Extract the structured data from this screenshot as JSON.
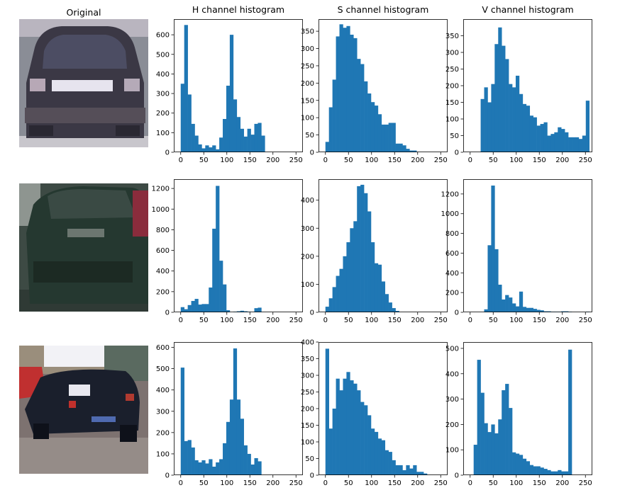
{
  "titles": {
    "original": "Original",
    "h": "H channel histogram",
    "s": "S channel histogram",
    "v": "V channel histogram"
  },
  "style": {
    "bar_color": "#1f77b4",
    "axis_color": "#000000"
  },
  "photos": [
    {
      "name": "car-photo-1",
      "description_colors": [
        "#5a5560",
        "#2c2a36",
        "#d8d8e0",
        "#b8b0c0"
      ]
    },
    {
      "name": "car-photo-2",
      "description_colors": [
        "#2c3d32",
        "#1d2a22",
        "#45524a",
        "#8a2030"
      ]
    },
    {
      "name": "car-photo-3",
      "description_colors": [
        "#1c2030",
        "#e8e8f0",
        "#c03030",
        "#7a6860"
      ]
    }
  ],
  "chart_data": [
    {
      "type": "bar",
      "row": 0,
      "channel": "H",
      "title": "H channel histogram",
      "bin_width": 7.6,
      "x": [
        0,
        7.6,
        15.2,
        22.8,
        30.4,
        38,
        45.6,
        53.2,
        60.8,
        68.4,
        76,
        83.6,
        91.2,
        98.8,
        106.4,
        114,
        121.6,
        129.2,
        136.8,
        144.4,
        152,
        159.6,
        167.2,
        174.8,
        182.4,
        190,
        197.6,
        205.2,
        212.8,
        220.4,
        228,
        235.6,
        243.2,
        250.8
      ],
      "values": [
        350,
        650,
        295,
        145,
        85,
        40,
        20,
        35,
        25,
        35,
        15,
        75,
        170,
        340,
        600,
        270,
        180,
        120,
        80,
        120,
        90,
        145,
        150,
        85,
        0,
        0,
        0,
        0,
        0,
        0,
        0,
        0,
        0,
        0
      ],
      "xlim": [
        -15,
        265
      ],
      "ylim": [
        0,
        680
      ],
      "xticks": [
        0,
        50,
        100,
        150,
        200,
        250
      ],
      "yticks": [
        0,
        100,
        200,
        300,
        400,
        500,
        600
      ]
    },
    {
      "type": "bar",
      "row": 0,
      "channel": "S",
      "title": "S channel histogram",
      "bin_width": 7.6,
      "x": [
        0,
        7.6,
        15.2,
        22.8,
        30.4,
        38,
        45.6,
        53.2,
        60.8,
        68.4,
        76,
        83.6,
        91.2,
        98.8,
        106.4,
        114,
        121.6,
        129.2,
        136.8,
        144.4,
        152,
        159.6,
        167.2,
        174.8,
        182.4,
        190,
        197.6,
        205.2,
        212.8,
        220.4,
        228,
        235.6,
        243.2,
        250.8
      ],
      "values": [
        30,
        130,
        210,
        335,
        370,
        360,
        365,
        340,
        330,
        270,
        255,
        205,
        170,
        145,
        135,
        110,
        80,
        80,
        85,
        85,
        25,
        25,
        20,
        10,
        5,
        5,
        0,
        0,
        0,
        0,
        0,
        0,
        0,
        0
      ],
      "xlim": [
        -15,
        265
      ],
      "ylim": [
        0,
        385
      ],
      "xticks": [
        0,
        50,
        100,
        150,
        200,
        250
      ],
      "yticks": [
        0,
        50,
        100,
        150,
        200,
        250,
        300,
        350
      ]
    },
    {
      "type": "bar",
      "row": 0,
      "channel": "V",
      "title": "V channel histogram",
      "bin_width": 7.6,
      "x": [
        0,
        7.6,
        15.2,
        22.8,
        30.4,
        38,
        45.6,
        53.2,
        60.8,
        68.4,
        76,
        83.6,
        91.2,
        98.8,
        106.4,
        114,
        121.6,
        129.2,
        136.8,
        144.4,
        152,
        159.6,
        167.2,
        174.8,
        182.4,
        190,
        197.6,
        205.2,
        212.8,
        220.4,
        228,
        235.6,
        243.2,
        250.8
      ],
      "values": [
        0,
        0,
        0,
        160,
        195,
        150,
        205,
        325,
        375,
        320,
        280,
        205,
        195,
        230,
        175,
        145,
        140,
        110,
        105,
        80,
        85,
        90,
        50,
        55,
        60,
        75,
        70,
        60,
        45,
        45,
        45,
        40,
        50,
        155
      ],
      "xlim": [
        -15,
        265
      ],
      "ylim": [
        0,
        400
      ],
      "xticks": [
        0,
        50,
        100,
        150,
        200,
        250
      ],
      "yticks": [
        0,
        50,
        100,
        150,
        200,
        250,
        300,
        350
      ]
    },
    {
      "type": "bar",
      "row": 1,
      "channel": "H",
      "title": "",
      "bin_width": 7.6,
      "x": [
        0,
        7.6,
        15.2,
        22.8,
        30.4,
        38,
        45.6,
        53.2,
        60.8,
        68.4,
        76,
        83.6,
        91.2,
        98.8,
        106.4,
        114,
        121.6,
        129.2,
        136.8,
        144.4,
        152,
        159.6,
        167.2,
        174.8,
        182.4,
        190,
        197.6,
        205.2,
        212.8,
        220.4,
        228,
        235.6,
        243.2,
        250.8
      ],
      "values": [
        50,
        30,
        70,
        110,
        130,
        75,
        80,
        80,
        240,
        810,
        1225,
        500,
        270,
        20,
        0,
        5,
        10,
        15,
        10,
        5,
        0,
        40,
        45,
        0,
        0,
        0,
        0,
        0,
        0,
        0,
        0,
        0,
        0,
        0
      ],
      "xlim": [
        -15,
        265
      ],
      "ylim": [
        0,
        1290
      ],
      "xticks": [
        0,
        50,
        100,
        150,
        200,
        250
      ],
      "yticks": [
        0,
        200,
        400,
        600,
        800,
        1000,
        1200
      ]
    },
    {
      "type": "bar",
      "row": 1,
      "channel": "S",
      "title": "",
      "bin_width": 7.6,
      "x": [
        0,
        7.6,
        15.2,
        22.8,
        30.4,
        38,
        45.6,
        53.2,
        60.8,
        68.4,
        76,
        83.6,
        91.2,
        98.8,
        106.4,
        114,
        121.6,
        129.2,
        136.8,
        144.4,
        152,
        159.6,
        167.2,
        174.8,
        182.4,
        190,
        197.6,
        205.2,
        212.8,
        220.4,
        228,
        235.6,
        243.2,
        250.8
      ],
      "values": [
        20,
        50,
        90,
        130,
        155,
        200,
        250,
        300,
        325,
        450,
        455,
        425,
        360,
        250,
        175,
        170,
        110,
        65,
        35,
        15,
        5,
        0,
        0,
        0,
        0,
        0,
        0,
        0,
        0,
        0,
        0,
        0,
        0,
        0
      ],
      "xlim": [
        -15,
        265
      ],
      "ylim": [
        0,
        475
      ],
      "xticks": [
        0,
        50,
        100,
        150,
        200,
        250
      ],
      "yticks": [
        0,
        100,
        200,
        300,
        400
      ]
    },
    {
      "type": "bar",
      "row": 1,
      "channel": "V",
      "title": "",
      "bin_width": 7.6,
      "x": [
        0,
        7.6,
        15.2,
        22.8,
        30.4,
        38,
        45.6,
        53.2,
        60.8,
        68.4,
        76,
        83.6,
        91.2,
        98.8,
        106.4,
        114,
        121.6,
        129.2,
        136.8,
        144.4,
        152,
        159.6,
        167.2,
        174.8,
        182.4,
        190,
        197.6,
        205.2,
        212.8,
        220.4,
        228,
        235.6,
        243.2,
        250.8
      ],
      "values": [
        0,
        0,
        0,
        0,
        30,
        680,
        1285,
        640,
        280,
        130,
        175,
        150,
        90,
        60,
        210,
        55,
        45,
        45,
        35,
        25,
        20,
        10,
        10,
        5,
        5,
        5,
        10,
        10,
        5,
        0,
        0,
        0,
        0,
        5
      ],
      "xlim": [
        -15,
        265
      ],
      "ylim": [
        0,
        1350
      ],
      "xticks": [
        0,
        50,
        100,
        150,
        200,
        250
      ],
      "yticks": [
        0,
        200,
        400,
        600,
        800,
        1000,
        1200
      ]
    },
    {
      "type": "bar",
      "row": 2,
      "channel": "H",
      "title": "",
      "bin_width": 7.6,
      "x": [
        0,
        7.6,
        15.2,
        22.8,
        30.4,
        38,
        45.6,
        53.2,
        60.8,
        68.4,
        76,
        83.6,
        91.2,
        98.8,
        106.4,
        114,
        121.6,
        129.2,
        136.8,
        144.4,
        152,
        159.6,
        167.2,
        174.8,
        182.4,
        190,
        197.6,
        205.2,
        212.8,
        220.4,
        228,
        235.6,
        243.2,
        250.8
      ],
      "values": [
        505,
        160,
        165,
        130,
        70,
        60,
        70,
        55,
        75,
        40,
        60,
        75,
        150,
        250,
        355,
        595,
        355,
        265,
        140,
        100,
        50,
        80,
        65,
        0,
        0,
        0,
        0,
        0,
        0,
        0,
        0,
        0,
        0,
        0
      ],
      "xlim": [
        -15,
        265
      ],
      "ylim": [
        0,
        625
      ],
      "xticks": [
        0,
        50,
        100,
        150,
        200,
        250
      ],
      "yticks": [
        0,
        100,
        200,
        300,
        400,
        500,
        600
      ]
    },
    {
      "type": "bar",
      "row": 2,
      "channel": "S",
      "title": "",
      "bin_width": 7.6,
      "x": [
        0,
        7.6,
        15.2,
        22.8,
        30.4,
        38,
        45.6,
        53.2,
        60.8,
        68.4,
        76,
        83.6,
        91.2,
        98.8,
        106.4,
        114,
        121.6,
        129.2,
        136.8,
        144.4,
        152,
        159.6,
        167.2,
        174.8,
        182.4,
        190,
        197.6,
        205.2,
        212.8,
        220.4,
        228,
        235.6,
        243.2,
        250.8
      ],
      "values": [
        380,
        140,
        200,
        290,
        255,
        290,
        310,
        285,
        275,
        255,
        220,
        210,
        180,
        140,
        130,
        110,
        105,
        75,
        70,
        45,
        30,
        30,
        15,
        30,
        20,
        30,
        10,
        10,
        5,
        0,
        0,
        0,
        0,
        0
      ],
      "xlim": [
        -15,
        265
      ],
      "ylim": [
        0,
        400
      ],
      "xticks": [
        0,
        50,
        100,
        150,
        200,
        250
      ],
      "yticks": [
        0,
        50,
        100,
        150,
        200,
        250,
        300,
        350,
        400
      ]
    },
    {
      "type": "bar",
      "row": 2,
      "channel": "V",
      "title": "",
      "bin_width": 7.6,
      "x": [
        0,
        7.6,
        15.2,
        22.8,
        30.4,
        38,
        45.6,
        53.2,
        60.8,
        68.4,
        76,
        83.6,
        91.2,
        98.8,
        106.4,
        114,
        121.6,
        129.2,
        136.8,
        144.4,
        152,
        159.6,
        167.2,
        174.8,
        182.4,
        190,
        197.6,
        205.2,
        212.8,
        220.4,
        228,
        235.6,
        243.2,
        250.8
      ],
      "values": [
        0,
        120,
        455,
        325,
        205,
        170,
        200,
        165,
        220,
        335,
        360,
        265,
        90,
        85,
        80,
        65,
        55,
        40,
        35,
        35,
        30,
        25,
        20,
        15,
        15,
        20,
        15,
        15,
        495,
        0,
        0,
        0,
        0,
        0
      ],
      "xlim": [
        -15,
        265
      ],
      "ylim": [
        0,
        525
      ],
      "xticks": [
        0,
        50,
        100,
        150,
        200,
        250
      ],
      "yticks": [
        0,
        100,
        200,
        300,
        400,
        500
      ]
    }
  ]
}
